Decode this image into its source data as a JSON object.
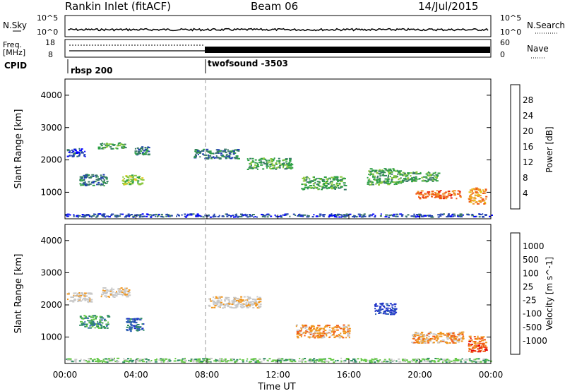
{
  "header": {
    "title": "Rankin Inlet (fitACF)",
    "beam": "Beam 06",
    "date": "14/Jul/2015"
  },
  "top_panels": {
    "nsky_label": "N.Sky",
    "nsearch_label": "N.Search",
    "nsky_ticks": [
      "10^5",
      "10^0"
    ],
    "nsearch_ticks": [
      "10^5",
      "10^0"
    ],
    "freq_label_1": "Freq.",
    "freq_label_2": "[MHz]",
    "freq_ticks": [
      "18",
      "8"
    ],
    "nave_label": "Nave",
    "nave_ticks": [
      "60",
      "0"
    ],
    "cpid_label": "CPID",
    "cpid_segments": [
      "rbsp 200",
      "twofsound -3503"
    ]
  },
  "colors": {
    "power": [
      "#0000ff",
      "#2040b0",
      "#3a7a68",
      "#2fa046",
      "#8cc83c",
      "#e6c81e",
      "#f09628",
      "#f05a14",
      "#e61e0a"
    ],
    "velocity": [
      "#e60a0a",
      "#f05a14",
      "#f0961e",
      "#c8c8c8",
      "#c8c8c8",
      "#64c846",
      "#2e8c64",
      "#3264b4",
      "#1e32c8"
    ]
  },
  "chart_data": [
    {
      "type": "heatmap",
      "title": "",
      "ylabel": "Slant Range [km]",
      "xlabel": "",
      "ylim": [
        180,
        4500
      ],
      "yticks": [
        "1000",
        "2000",
        "3000",
        "4000"
      ],
      "xticks": [
        "00:00",
        "04:00",
        "08:00",
        "12:00",
        "16:00",
        "20:00",
        "00:00"
      ],
      "colorbar": {
        "label": "Power [dB]",
        "ticks": [
          "4",
          "8",
          "12",
          "16",
          "20",
          "24",
          "28"
        ]
      },
      "blobs": [
        {
          "t": 0.6,
          "r": 2250,
          "dt": 1.0,
          "dr": 250,
          "c": 1
        },
        {
          "t": 2.6,
          "r": 2450,
          "dt": 1.5,
          "dr": 200,
          "c": 3
        },
        {
          "t": 4.3,
          "r": 2300,
          "dt": 0.8,
          "dr": 250,
          "c": 2
        },
        {
          "t": 1.6,
          "r": 1400,
          "dt": 1.6,
          "dr": 350,
          "c": 2
        },
        {
          "t": 3.8,
          "r": 1400,
          "dt": 1.2,
          "dr": 300,
          "c": 4
        },
        {
          "t": 8.5,
          "r": 2200,
          "dt": 2.5,
          "dr": 300,
          "c": 2
        },
        {
          "t": 11.5,
          "r": 1900,
          "dt": 2.5,
          "dr": 350,
          "c": 3
        },
        {
          "t": 14.5,
          "r": 1300,
          "dt": 2.5,
          "dr": 400,
          "c": 3
        },
        {
          "t": 18.0,
          "r": 1500,
          "dt": 2.0,
          "dr": 500,
          "c": 3
        },
        {
          "t": 21.0,
          "r": 950,
          "dt": 2.5,
          "dr": 250,
          "c": 7
        },
        {
          "t": 23.2,
          "r": 900,
          "dt": 1.0,
          "dr": 500,
          "c": 6
        },
        {
          "t": 20.0,
          "r": 1500,
          "dt": 2.0,
          "dr": 300,
          "c": 3
        },
        {
          "t": 12.0,
          "r": 300,
          "dt": 24.0,
          "dr": 100,
          "c": 1
        }
      ]
    },
    {
      "type": "heatmap",
      "title": "",
      "ylabel": "Slant Range [km]",
      "xlabel": "Time UT",
      "ylim": [
        180,
        4500
      ],
      "yticks": [
        "1000",
        "2000",
        "3000",
        "4000"
      ],
      "xticks": [
        "00:00",
        "04:00",
        "08:00",
        "12:00",
        "16:00",
        "20:00",
        "00:00"
      ],
      "colorbar": {
        "label": "Velocity [m s^-1]",
        "ticks": [
          "1000",
          "500",
          "100",
          "25",
          "-25",
          "-100",
          "-500",
          "-1000"
        ]
      },
      "blobs": [
        {
          "t": 0.8,
          "r": 2250,
          "dt": 1.4,
          "dr": 300,
          "c": 3
        },
        {
          "t": 2.8,
          "r": 2400,
          "dt": 1.6,
          "dr": 300,
          "c": 3
        },
        {
          "t": 1.6,
          "r": 1500,
          "dt": 1.6,
          "dr": 400,
          "c": 6
        },
        {
          "t": 3.9,
          "r": 1400,
          "dt": 1.0,
          "dr": 400,
          "c": 7
        },
        {
          "t": 9.5,
          "r": 2100,
          "dt": 3.0,
          "dr": 350,
          "c": 3
        },
        {
          "t": 14.5,
          "r": 1200,
          "dt": 3.0,
          "dr": 400,
          "c": 2
        },
        {
          "t": 18.0,
          "r": 1900,
          "dt": 1.2,
          "dr": 350,
          "c": 8
        },
        {
          "t": 21.0,
          "r": 1000,
          "dt": 3.0,
          "dr": 350,
          "c": 2
        },
        {
          "t": 23.2,
          "r": 800,
          "dt": 1.0,
          "dr": 500,
          "c": 1
        },
        {
          "t": 12.0,
          "r": 300,
          "dt": 24.0,
          "dr": 120,
          "c": 5
        }
      ]
    }
  ]
}
